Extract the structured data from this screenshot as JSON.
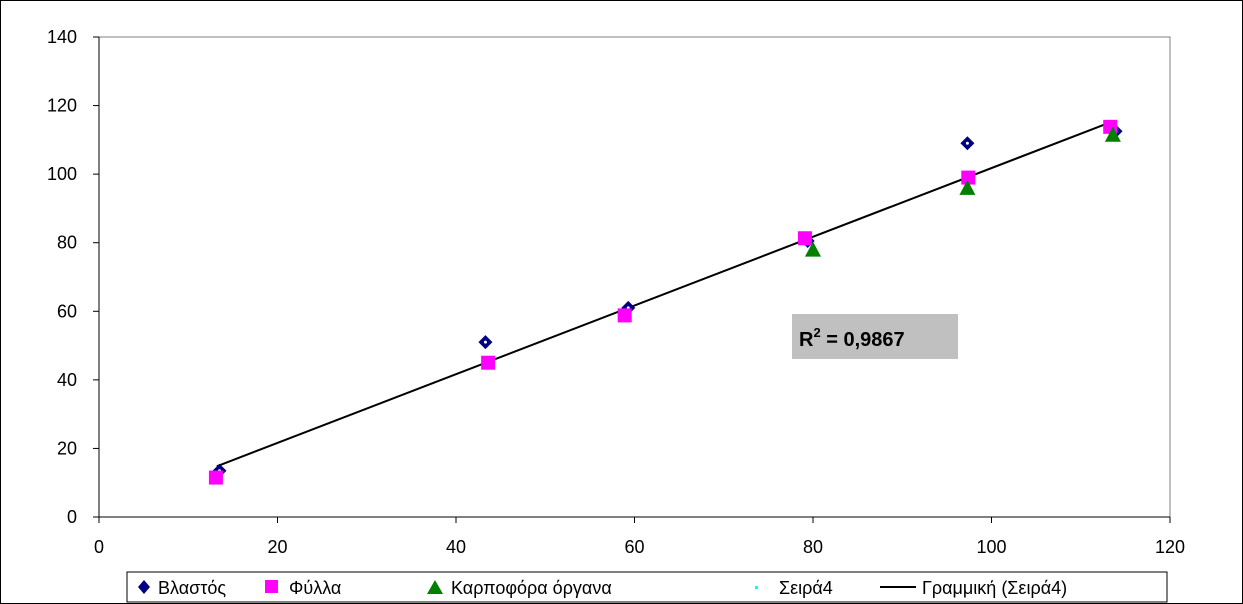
{
  "chart_data": {
    "type": "scatter",
    "title": "",
    "xlabel": "",
    "ylabel": "",
    "xlim": [
      0,
      120
    ],
    "ylim": [
      0,
      140
    ],
    "x_ticks": [
      "0",
      "20",
      "40",
      "60",
      "80",
      "100",
      "120"
    ],
    "y_ticks": [
      "0",
      "20",
      "40",
      "60",
      "80",
      "100",
      "120",
      "140"
    ],
    "grid": false,
    "legend_position": "bottom",
    "series": [
      {
        "name": "Βλαστός",
        "marker": "diamond",
        "color": "#000080",
        "points": [
          [
            13.5,
            13.5
          ],
          [
            43.3,
            51
          ],
          [
            59.3,
            61
          ],
          [
            79.4,
            80.5
          ],
          [
            97.3,
            109
          ],
          [
            113.9,
            112.5
          ]
        ]
      },
      {
        "name": "Φύλλα",
        "marker": "square",
        "color": "#FF00FF",
        "points": [
          [
            13.1,
            11.5
          ],
          [
            43.6,
            45
          ],
          [
            58.9,
            58.8
          ],
          [
            79.1,
            81.3
          ],
          [
            97.4,
            99
          ],
          [
            113.3,
            113.8
          ]
        ]
      },
      {
        "name": "Καρποφόρα όργανα",
        "marker": "triangle",
        "color": "#008000",
        "points": [
          [
            80,
            78
          ],
          [
            97.3,
            96
          ],
          [
            113.6,
            111.5
          ]
        ]
      },
      {
        "name": "Σειρά4",
        "marker": "dot",
        "color": "#00FFFF",
        "points": [
          [
            13.2,
            11.8
          ],
          [
            43.5,
            45.2
          ],
          [
            59,
            59
          ],
          [
            79.5,
            80.8
          ],
          [
            97.4,
            97.5
          ],
          [
            113.6,
            112
          ]
        ]
      }
    ],
    "trendline": {
      "name": "Γραμμική (Σειρά4)",
      "type": "linear",
      "color": "#000000",
      "from": [
        13.2,
        14.8
      ],
      "to": [
        113.6,
        115.4
      ]
    },
    "annotation": {
      "r2_label": "R",
      "r2_exponent": "2",
      "r2_value": " = 0,9867"
    }
  }
}
